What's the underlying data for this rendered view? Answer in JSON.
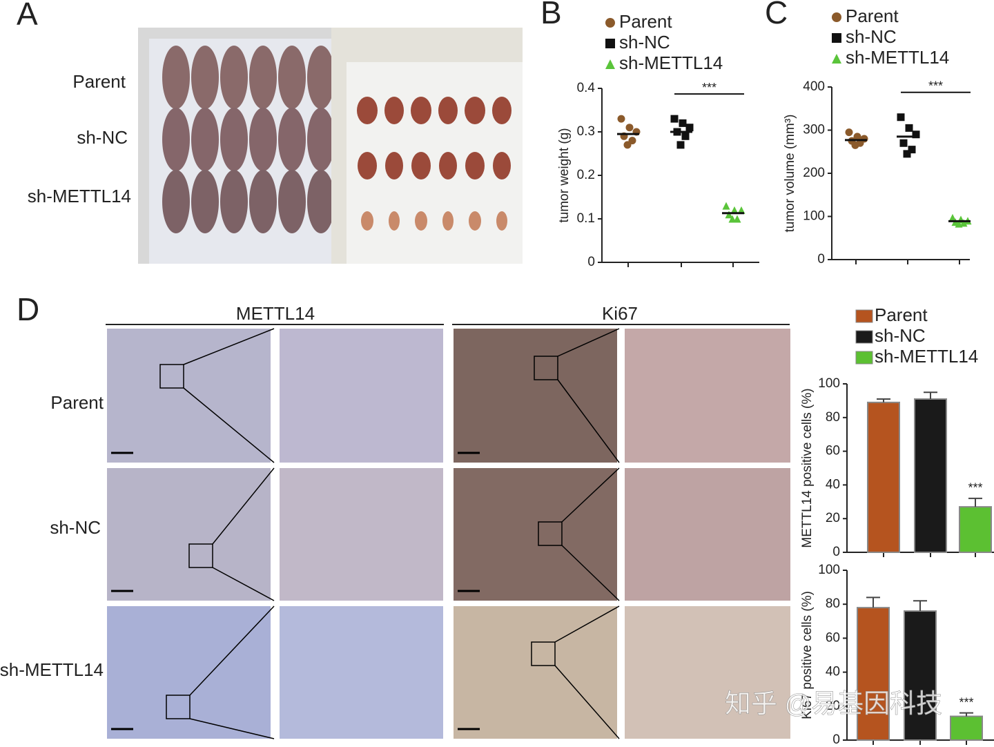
{
  "panel_labels": [
    "A",
    "B",
    "C",
    "D"
  ],
  "panel_a": {
    "row_labels": [
      "Parent",
      "sh-NC",
      "sh-METTL14"
    ]
  },
  "panel_d": {
    "column_headers": [
      "METTL14",
      "Ki67"
    ],
    "row_labels": [
      "Parent",
      "sh-NC",
      "sh-METTL14"
    ]
  },
  "watermark": "知乎 @易基因科技",
  "chart_data": [
    {
      "type": "dotplot",
      "ylabel": "tumor weight (g)",
      "ylim": [
        0,
        0.4
      ],
      "yticks": [
        0,
        0.1,
        0.2,
        0.3,
        0.4
      ],
      "annotation": "***",
      "series": [
        {
          "name": "Parent",
          "color": "#8b5a2b",
          "marker": "circle",
          "values": [
            0.33,
            0.31,
            0.3,
            0.29,
            0.28,
            0.27
          ],
          "mean": 0.295
        },
        {
          "name": "sh-NC",
          "color": "#111111",
          "marker": "square",
          "values": [
            0.33,
            0.32,
            0.31,
            0.3,
            0.29,
            0.27
          ],
          "mean": 0.3
        },
        {
          "name": "sh-METTL14",
          "color": "#5ac43a",
          "marker": "triangle",
          "values": [
            0.13,
            0.12,
            0.12,
            0.11,
            0.1,
            0.1
          ],
          "mean": 0.113
        }
      ]
    },
    {
      "type": "dotplot",
      "ylabel": "tumor volume (mm³)",
      "ylim": [
        0,
        400
      ],
      "yticks": [
        0,
        100,
        200,
        300,
        400
      ],
      "annotation": "***",
      "series": [
        {
          "name": "Parent",
          "color": "#8b5a2b",
          "marker": "circle",
          "values": [
            295,
            285,
            280,
            275,
            270,
            265
          ],
          "mean": 277
        },
        {
          "name": "sh-NC",
          "color": "#111111",
          "marker": "square",
          "values": [
            330,
            305,
            290,
            270,
            255,
            245
          ],
          "mean": 285
        },
        {
          "name": "sh-METTL14",
          "color": "#5ac43a",
          "marker": "triangle",
          "values": [
            97,
            93,
            90,
            87,
            85,
            83
          ],
          "mean": 89
        }
      ]
    },
    {
      "type": "bar",
      "ylabel": "METTL14 positive cells (%)",
      "ylim": [
        0,
        100
      ],
      "yticks": [
        0,
        20,
        40,
        60,
        80,
        100
      ],
      "annotation": "***",
      "series": [
        {
          "name": "Parent",
          "color": "#b5541f",
          "values": [
            89
          ],
          "errors": [
            2
          ]
        },
        {
          "name": "sh-NC",
          "color": "#1a1a1a",
          "values": [
            91
          ],
          "errors": [
            4
          ]
        },
        {
          "name": "sh-METTL14",
          "color": "#5cc032",
          "values": [
            27
          ],
          "errors": [
            5
          ]
        }
      ]
    },
    {
      "type": "bar",
      "ylabel": "Ki67 positive cells (%)",
      "ylim": [
        0,
        100
      ],
      "yticks": [
        0,
        20,
        40,
        60,
        80,
        100
      ],
      "annotation": "***",
      "series": [
        {
          "color": "#b5541f",
          "values": [
            78
          ],
          "errors": [
            6
          ]
        },
        {
          "color": "#1a1a1a",
          "values": [
            76
          ],
          "errors": [
            6
          ]
        },
        {
          "color": "#5cc032",
          "values": [
            14
          ],
          "errors": [
            2
          ]
        }
      ]
    }
  ]
}
